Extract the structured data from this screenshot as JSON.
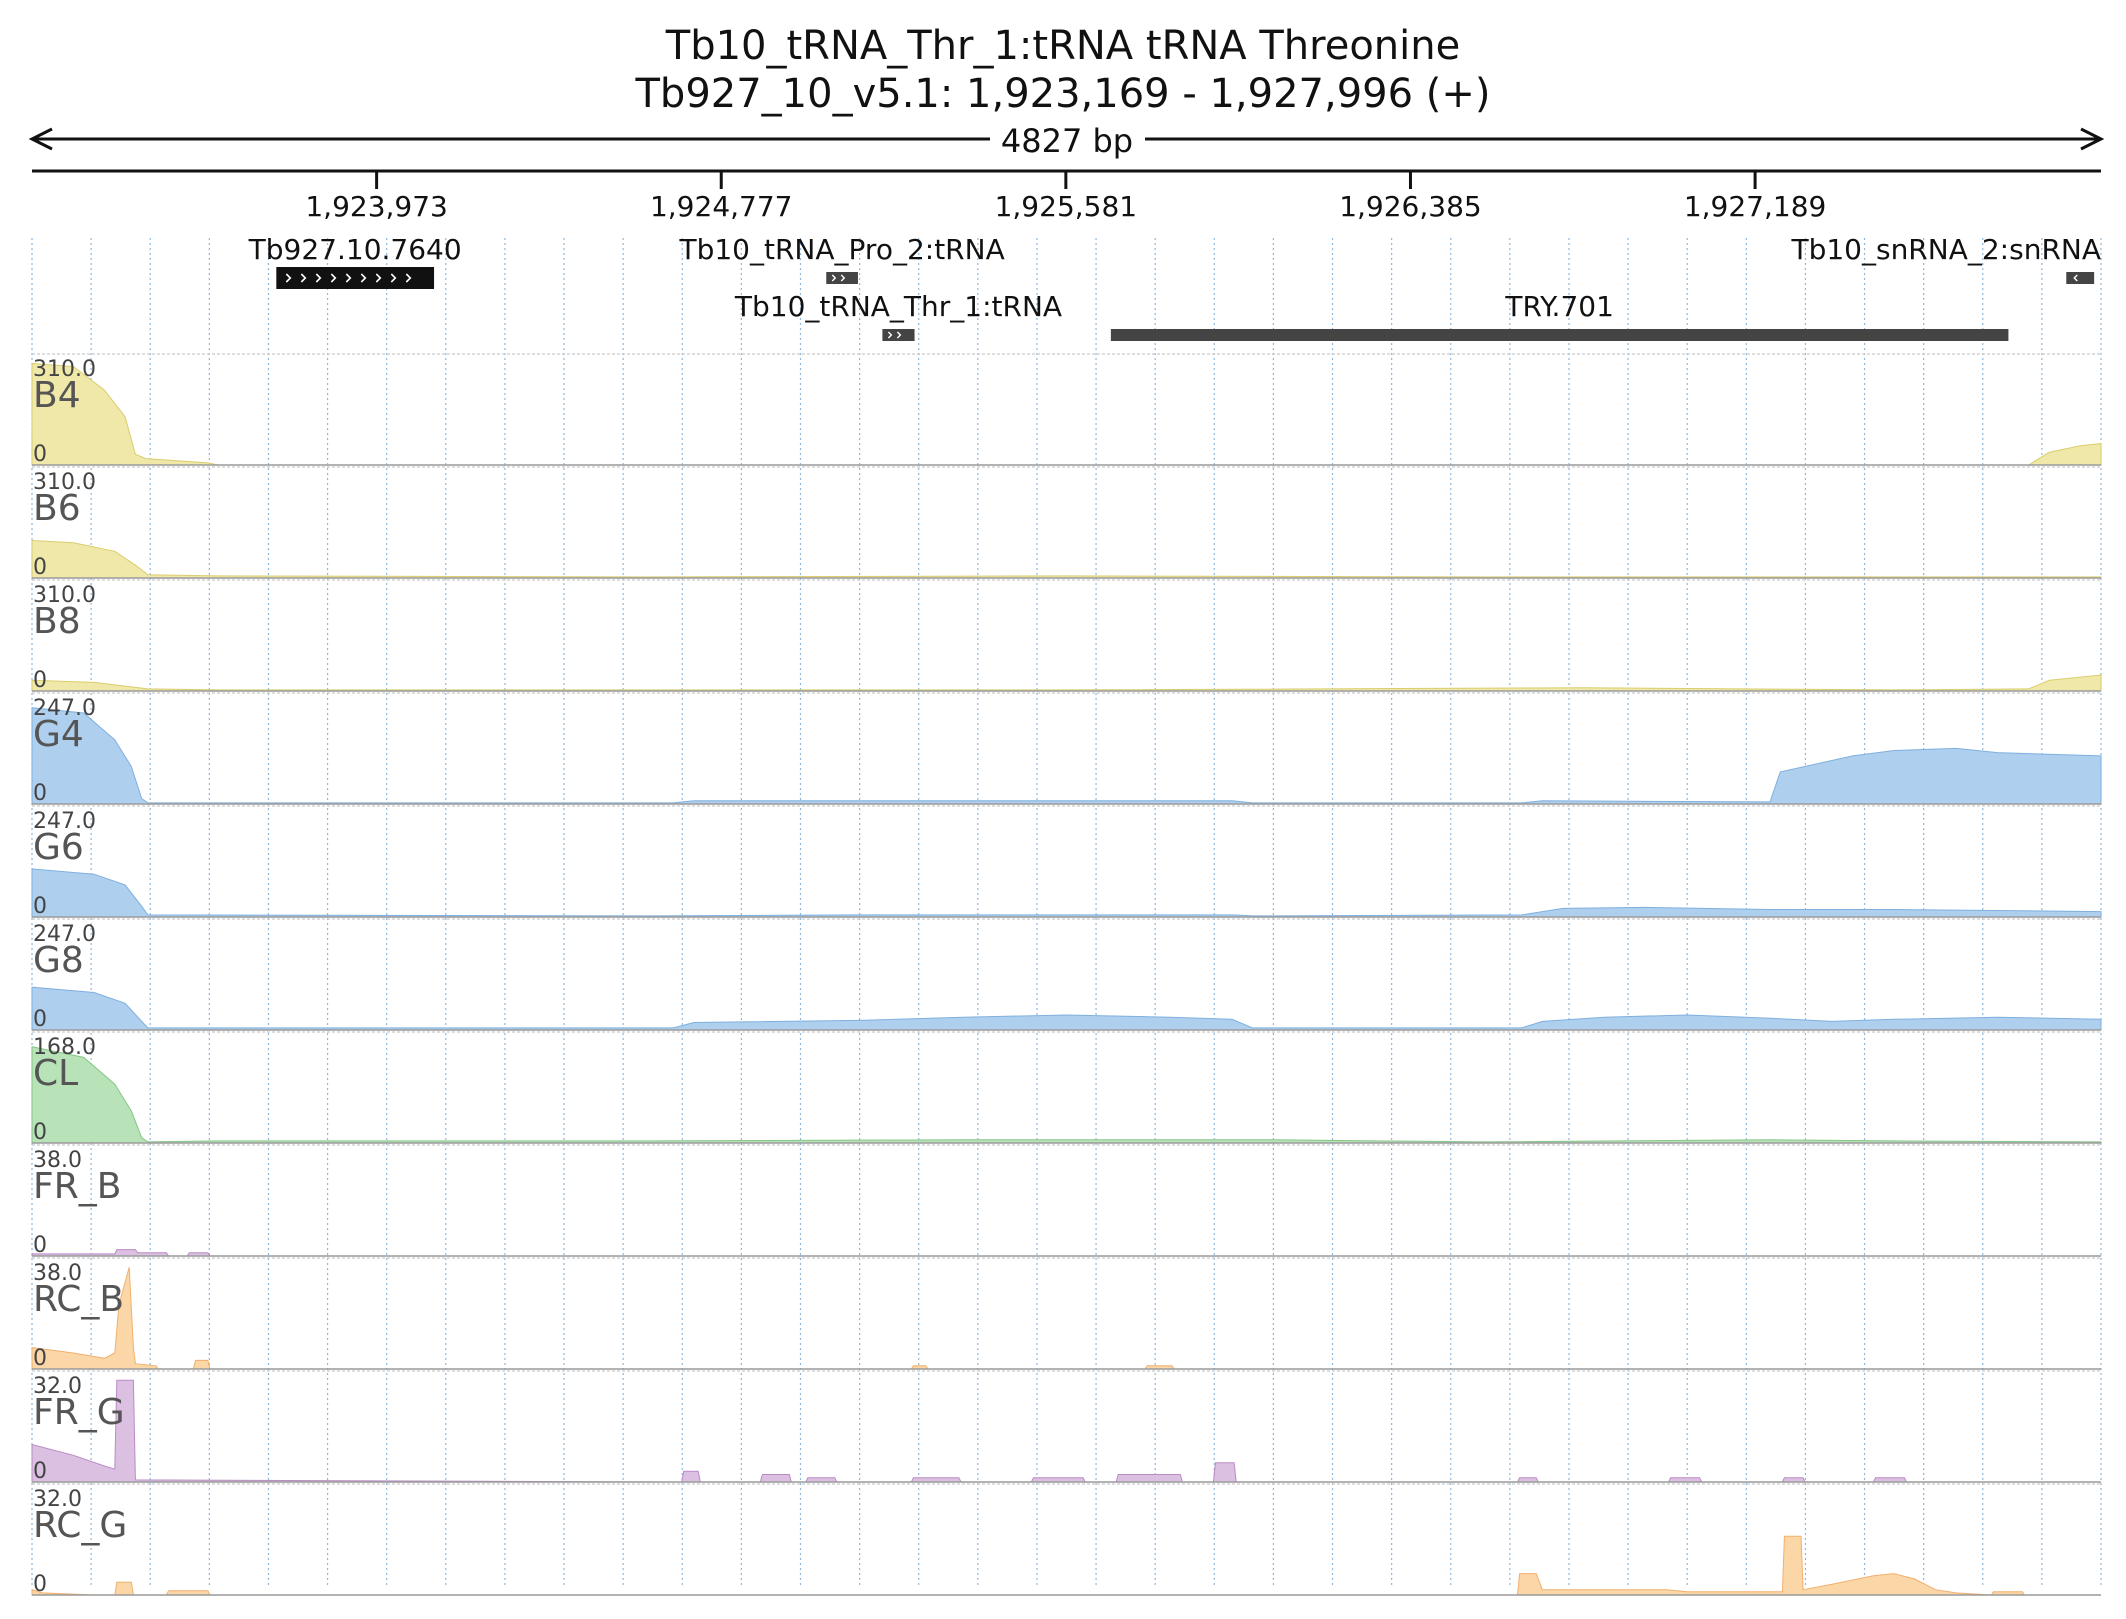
{
  "header": {
    "title": "Tb10_tRNA_Thr_1:tRNA  tRNA Threonine",
    "locus": "Tb927_10_v5.1: 1,923,169 - 1,927,996 (+)"
  },
  "ruler": {
    "span_label": "4827 bp",
    "start": 1923169,
    "end": 1927996,
    "ticks": [
      {
        "pos": 1923973,
        "label": "1,923,973"
      },
      {
        "pos": 1924777,
        "label": "1,924,777"
      },
      {
        "pos": 1925581,
        "label": "1,925,581"
      },
      {
        "pos": 1926385,
        "label": "1,926,385"
      },
      {
        "pos": 1927189,
        "label": "1,927,189"
      }
    ]
  },
  "features": [
    {
      "name": "Tb927.10.7640",
      "start": 1923739,
      "end": 1924107,
      "strand": "+",
      "row": 0,
      "style": "black"
    },
    {
      "name": "Tb10_tRNA_Pro_2:tRNA",
      "start": 1925022,
      "end": 1925096,
      "strand": "+",
      "row": 0,
      "style": "small"
    },
    {
      "name": "Tb10_snRNA_2:snRNA",
      "start": 1927915,
      "end": 1927980,
      "strand": "-",
      "row": 0,
      "style": "small"
    },
    {
      "name": "Tb10_tRNA_Thr_1:tRNA",
      "start": 1925153,
      "end": 1925228,
      "strand": "+",
      "row": 1,
      "style": "small"
    },
    {
      "name": "TRY.701",
      "start": 1925686,
      "end": 1927780,
      "strand": "",
      "row": 1,
      "style": "bar"
    }
  ],
  "tracks": [
    {
      "name": "B4",
      "max_label": "310.0",
      "min_label": "0",
      "color": "#f0e8a8",
      "stroke": "#d9cd6e",
      "profile": [
        [
          0,
          0.95
        ],
        [
          0.02,
          0.92
        ],
        [
          0.035,
          0.7
        ],
        [
          0.045,
          0.45
        ],
        [
          0.05,
          0.1
        ],
        [
          0.055,
          0.06
        ],
        [
          0.085,
          0.02
        ],
        [
          0.09,
          0.0
        ],
        [
          0.965,
          0.0
        ],
        [
          0.975,
          0.12
        ],
        [
          0.99,
          0.18
        ],
        [
          1.0,
          0.2
        ]
      ]
    },
    {
      "name": "B6",
      "max_label": "310.0",
      "min_label": "0",
      "color": "#f0e8a8",
      "stroke": "#d9cd6e",
      "profile": [
        [
          0,
          0.35
        ],
        [
          0.02,
          0.33
        ],
        [
          0.04,
          0.25
        ],
        [
          0.05,
          0.12
        ],
        [
          0.056,
          0.03
        ],
        [
          0.09,
          0.02
        ],
        [
          0.3,
          0.01
        ],
        [
          0.5,
          0.02
        ],
        [
          0.7,
          0.01
        ],
        [
          1.0,
          0.01
        ]
      ]
    },
    {
      "name": "B8",
      "max_label": "310.0",
      "min_label": "0",
      "color": "#f0e8a8",
      "stroke": "#d9cd6e",
      "profile": [
        [
          0,
          0.1
        ],
        [
          0.03,
          0.08
        ],
        [
          0.056,
          0.02
        ],
        [
          0.09,
          0.01
        ],
        [
          0.5,
          0.01
        ],
        [
          0.75,
          0.03
        ],
        [
          0.9,
          0.01
        ],
        [
          0.965,
          0.02
        ],
        [
          0.975,
          0.1
        ],
        [
          1.0,
          0.15
        ]
      ]
    },
    {
      "name": "G4",
      "max_label": "247.0",
      "min_label": "0",
      "color": "#aecfee",
      "stroke": "#7fb0de",
      "profile": [
        [
          0,
          0.9
        ],
        [
          0.025,
          0.85
        ],
        [
          0.04,
          0.6
        ],
        [
          0.048,
          0.35
        ],
        [
          0.053,
          0.05
        ],
        [
          0.056,
          0.01
        ],
        [
          0.31,
          0.01
        ],
        [
          0.32,
          0.03
        ],
        [
          0.58,
          0.03
        ],
        [
          0.59,
          0.01
        ],
        [
          0.72,
          0.01
        ],
        [
          0.73,
          0.03
        ],
        [
          0.84,
          0.02
        ],
        [
          0.845,
          0.3
        ],
        [
          0.88,
          0.45
        ],
        [
          0.9,
          0.5
        ],
        [
          0.93,
          0.52
        ],
        [
          0.95,
          0.48
        ],
        [
          1.0,
          0.45
        ]
      ]
    },
    {
      "name": "G6",
      "max_label": "247.0",
      "min_label": "0",
      "color": "#aecfee",
      "stroke": "#7fb0de",
      "profile": [
        [
          0,
          0.45
        ],
        [
          0.03,
          0.4
        ],
        [
          0.045,
          0.3
        ],
        [
          0.053,
          0.1
        ],
        [
          0.056,
          0.02
        ],
        [
          0.3,
          0.01
        ],
        [
          0.4,
          0.02
        ],
        [
          0.58,
          0.02
        ],
        [
          0.59,
          0.01
        ],
        [
          0.72,
          0.02
        ],
        [
          0.74,
          0.08
        ],
        [
          0.78,
          0.09
        ],
        [
          0.84,
          0.07
        ],
        [
          0.9,
          0.07
        ],
        [
          1.0,
          0.05
        ]
      ]
    },
    {
      "name": "G8",
      "max_label": "247.0",
      "min_label": "0",
      "color": "#aecfee",
      "stroke": "#7fb0de",
      "profile": [
        [
          0,
          0.4
        ],
        [
          0.03,
          0.35
        ],
        [
          0.045,
          0.25
        ],
        [
          0.053,
          0.08
        ],
        [
          0.056,
          0.02
        ],
        [
          0.31,
          0.02
        ],
        [
          0.32,
          0.07
        ],
        [
          0.4,
          0.09
        ],
        [
          0.45,
          0.12
        ],
        [
          0.5,
          0.14
        ],
        [
          0.55,
          0.12
        ],
        [
          0.58,
          0.1
        ],
        [
          0.59,
          0.02
        ],
        [
          0.72,
          0.02
        ],
        [
          0.73,
          0.08
        ],
        [
          0.76,
          0.12
        ],
        [
          0.8,
          0.14
        ],
        [
          0.84,
          0.11
        ],
        [
          0.87,
          0.08
        ],
        [
          0.9,
          0.1
        ],
        [
          0.95,
          0.12
        ],
        [
          1.0,
          0.1
        ]
      ]
    },
    {
      "name": "CL",
      "max_label": "168.0",
      "min_label": "0",
      "color": "#b8e2b8",
      "stroke": "#86c686",
      "profile": [
        [
          0,
          0.9
        ],
        [
          0.025,
          0.8
        ],
        [
          0.04,
          0.55
        ],
        [
          0.048,
          0.3
        ],
        [
          0.053,
          0.05
        ],
        [
          0.056,
          0.01
        ],
        [
          0.09,
          0.02
        ],
        [
          0.3,
          0.02
        ],
        [
          0.45,
          0.03
        ],
        [
          0.6,
          0.03
        ],
        [
          0.7,
          0.01
        ],
        [
          0.84,
          0.03
        ],
        [
          0.9,
          0.02
        ],
        [
          1.0,
          0.01
        ]
      ]
    },
    {
      "name": "FR_B",
      "max_label": "38.0",
      "min_label": "0",
      "color": "#dcc0e2",
      "stroke": "#b98cc4",
      "profile": [
        [
          0,
          0.02
        ],
        [
          0.04,
          0.02
        ],
        [
          0.041,
          0.06
        ],
        [
          0.05,
          0.06
        ],
        [
          0.051,
          0.03
        ],
        [
          0.065,
          0.03
        ],
        [
          0.066,
          0.0
        ],
        [
          0.075,
          0.0
        ],
        [
          0.076,
          0.03
        ],
        [
          0.085,
          0.03
        ],
        [
          0.086,
          0.0
        ],
        [
          1.0,
          0.0
        ]
      ]
    },
    {
      "name": "RC_B",
      "max_label": "38.0",
      "min_label": "0",
      "color": "#fbd6a6",
      "stroke": "#f0b070",
      "profile": [
        [
          0,
          0.2
        ],
        [
          0.02,
          0.15
        ],
        [
          0.035,
          0.1
        ],
        [
          0.04,
          0.15
        ],
        [
          0.042,
          0.6
        ],
        [
          0.047,
          0.95
        ],
        [
          0.049,
          0.2
        ],
        [
          0.05,
          0.05
        ],
        [
          0.06,
          0.03
        ],
        [
          0.061,
          0.0
        ],
        [
          0.078,
          0.0
        ],
        [
          0.079,
          0.08
        ],
        [
          0.085,
          0.08
        ],
        [
          0.086,
          0.0
        ],
        [
          0.425,
          0.0
        ],
        [
          0.426,
          0.03
        ],
        [
          0.432,
          0.03
        ],
        [
          0.433,
          0.0
        ],
        [
          0.538,
          0.0
        ],
        [
          0.539,
          0.03
        ],
        [
          0.551,
          0.03
        ],
        [
          0.552,
          0.0
        ],
        [
          1.0,
          0.0
        ]
      ]
    },
    {
      "name": "FR_G",
      "max_label": "32.0",
      "min_label": "0",
      "color": "#dcc0e2",
      "stroke": "#b98cc4",
      "profile": [
        [
          0,
          0.35
        ],
        [
          0.02,
          0.25
        ],
        [
          0.035,
          0.15
        ],
        [
          0.04,
          0.12
        ],
        [
          0.041,
          0.95
        ],
        [
          0.049,
          0.95
        ],
        [
          0.05,
          0.02
        ],
        [
          0.314,
          0.0
        ],
        [
          0.315,
          0.1
        ],
        [
          0.322,
          0.1
        ],
        [
          0.323,
          0.0
        ],
        [
          0.352,
          0.0
        ],
        [
          0.353,
          0.07
        ],
        [
          0.366,
          0.07
        ],
        [
          0.367,
          0.0
        ],
        [
          0.374,
          0.0
        ],
        [
          0.375,
          0.04
        ],
        [
          0.388,
          0.04
        ],
        [
          0.389,
          0.0
        ],
        [
          0.425,
          0.0
        ],
        [
          0.426,
          0.04
        ],
        [
          0.448,
          0.04
        ],
        [
          0.449,
          0.0
        ],
        [
          0.483,
          0.0
        ],
        [
          0.484,
          0.04
        ],
        [
          0.508,
          0.04
        ],
        [
          0.509,
          0.0
        ],
        [
          0.524,
          0.0
        ],
        [
          0.525,
          0.07
        ],
        [
          0.555,
          0.07
        ],
        [
          0.556,
          0.0
        ],
        [
          0.571,
          0.0
        ],
        [
          0.572,
          0.18
        ],
        [
          0.581,
          0.18
        ],
        [
          0.582,
          0.0
        ],
        [
          0.718,
          0.0
        ],
        [
          0.719,
          0.04
        ],
        [
          0.727,
          0.04
        ],
        [
          0.728,
          0.0
        ],
        [
          0.791,
          0.0
        ],
        [
          0.792,
          0.04
        ],
        [
          0.806,
          0.04
        ],
        [
          0.807,
          0.0
        ],
        [
          0.846,
          0.0
        ],
        [
          0.847,
          0.04
        ],
        [
          0.856,
          0.04
        ],
        [
          0.857,
          0.0
        ],
        [
          0.89,
          0.0
        ],
        [
          0.891,
          0.04
        ],
        [
          0.905,
          0.04
        ],
        [
          0.906,
          0.0
        ],
        [
          1.0,
          0.0
        ]
      ]
    },
    {
      "name": "RC_G",
      "max_label": "32.0",
      "min_label": "0",
      "color": "#fbd6a6",
      "stroke": "#f0b070",
      "profile": [
        [
          0,
          0.05
        ],
        [
          0.005,
          0.02
        ],
        [
          0.03,
          0.0
        ],
        [
          0.04,
          0.0
        ],
        [
          0.041,
          0.12
        ],
        [
          0.048,
          0.12
        ],
        [
          0.049,
          0.0
        ],
        [
          0.065,
          0.0
        ],
        [
          0.066,
          0.04
        ],
        [
          0.085,
          0.04
        ],
        [
          0.086,
          0.0
        ],
        [
          0.718,
          0.0
        ],
        [
          0.719,
          0.2
        ],
        [
          0.727,
          0.2
        ],
        [
          0.73,
          0.05
        ],
        [
          0.79,
          0.05
        ],
        [
          0.8,
          0.03
        ],
        [
          0.846,
          0.03
        ],
        [
          0.847,
          0.55
        ],
        [
          0.855,
          0.55
        ],
        [
          0.856,
          0.05
        ],
        [
          0.87,
          0.1
        ],
        [
          0.89,
          0.18
        ],
        [
          0.9,
          0.2
        ],
        [
          0.91,
          0.15
        ],
        [
          0.92,
          0.05
        ],
        [
          0.93,
          0.02
        ],
        [
          0.947,
          0.0
        ],
        [
          0.948,
          0.03
        ],
        [
          0.962,
          0.03
        ],
        [
          0.963,
          0.0
        ],
        [
          1.0,
          0.0
        ]
      ]
    }
  ]
}
